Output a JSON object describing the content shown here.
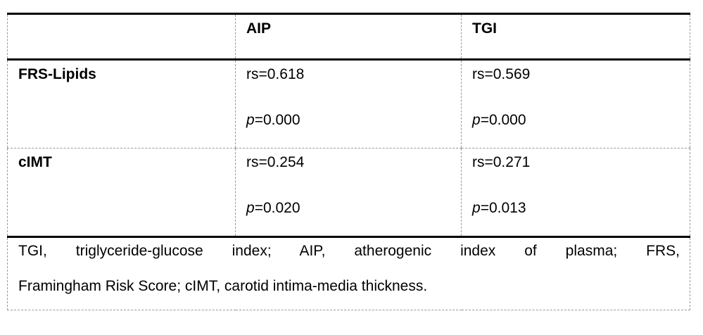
{
  "table": {
    "columns": [
      "AIP",
      "TGI"
    ],
    "rows": [
      {
        "label": "FRS-Lipids",
        "cells": [
          {
            "rs": "rs=0.618",
            "p_italic": "p",
            "p_value": "=0.000"
          },
          {
            "rs": "rs=0.569",
            "p_italic": "p",
            "p_value": "=0.000"
          }
        ]
      },
      {
        "label": "cIMT",
        "cells": [
          {
            "rs": "rs=0.254",
            "p_italic": "p",
            "p_value": "=0.020"
          },
          {
            "rs": "rs=0.271",
            "p_italic": "p",
            "p_value": "=0.013"
          }
        ]
      }
    ],
    "footnote": {
      "line1": "TGI, triglyceride-glucose index; AIP, atherogenic index of plasma; FRS,",
      "line2": "Framingham Risk Score; cIMT, carotid intima-media thickness."
    },
    "colors": {
      "text": "#000000",
      "solid_border": "#000000",
      "dashed_border": "#999999",
      "background": "#ffffff"
    }
  }
}
